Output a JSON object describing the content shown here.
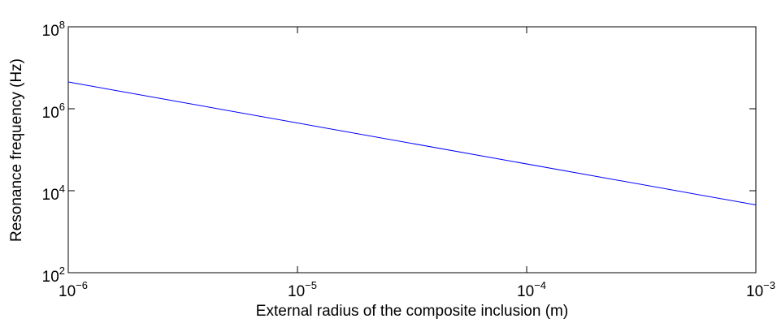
{
  "chart_data": {
    "type": "line",
    "title": "",
    "xlabel": "External radius of the composite inclusion (m)",
    "ylabel": "Resonance frequency (Hz)",
    "xscale": "log",
    "yscale": "log",
    "xlim": [
      1e-06,
      0.001
    ],
    "ylim": [
      100,
      100000000
    ],
    "grid": false,
    "legend": "none",
    "x_ticks": [
      {
        "base": "10",
        "exp": "−6",
        "value": 1e-06
      },
      {
        "base": "10",
        "exp": "−5",
        "value": 1e-05
      },
      {
        "base": "10",
        "exp": "−4",
        "value": 0.0001
      },
      {
        "base": "10",
        "exp": "−3",
        "value": 0.001
      }
    ],
    "y_ticks": [
      {
        "base": "10",
        "exp": "2",
        "value": 100
      },
      {
        "base": "10",
        "exp": "4",
        "value": 10000
      },
      {
        "base": "10",
        "exp": "6",
        "value": 1000000
      },
      {
        "base": "10",
        "exp": "8",
        "value": 100000000
      }
    ],
    "series": [
      {
        "color": "#0000ff",
        "x": [
          1e-06,
          0.001
        ],
        "y": [
          4500000,
          4500
        ]
      }
    ]
  }
}
